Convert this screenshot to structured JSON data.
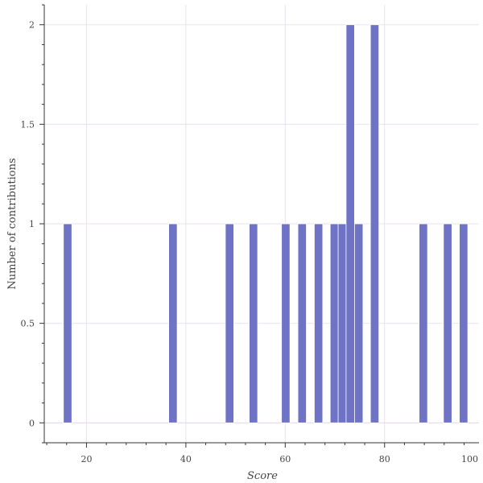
{
  "chart_data": {
    "type": "bar",
    "xlabel": "Score",
    "ylabel": "Number of contributions",
    "xlim": [
      11.5,
      99
    ],
    "ylim": [
      -0.1,
      2.1
    ],
    "x_ticks": [
      20,
      40,
      60,
      80,
      100
    ],
    "y_ticks": [
      0,
      0.5,
      1,
      1.5,
      2
    ],
    "x_tick_labels": [
      "20",
      "40",
      "60",
      "80",
      "100"
    ],
    "y_tick_labels": [
      "0",
      "0.5",
      "1",
      "1.5",
      "2"
    ],
    "bin_width": 1.7,
    "bins": [
      {
        "x": 16.2,
        "count": 1
      },
      {
        "x": 37.4,
        "count": 1
      },
      {
        "x": 48.8,
        "count": 1
      },
      {
        "x": 53.6,
        "count": 1
      },
      {
        "x": 60.1,
        "count": 1
      },
      {
        "x": 63.4,
        "count": 1
      },
      {
        "x": 66.7,
        "count": 1
      },
      {
        "x": 69.9,
        "count": 1
      },
      {
        "x": 71.5,
        "count": 1
      },
      {
        "x": 73.1,
        "count": 2
      },
      {
        "x": 74.8,
        "count": 1
      },
      {
        "x": 78.0,
        "count": 2
      },
      {
        "x": 87.8,
        "count": 1
      },
      {
        "x": 92.7,
        "count": 1
      },
      {
        "x": 95.9,
        "count": 1
      }
    ],
    "grid": true,
    "colors": {
      "bar": "#6f73c6",
      "bar_edge": "#ffffff",
      "grid": "#e8e2ee",
      "baseline": "#e0d4f0",
      "axis": "#333333"
    }
  }
}
